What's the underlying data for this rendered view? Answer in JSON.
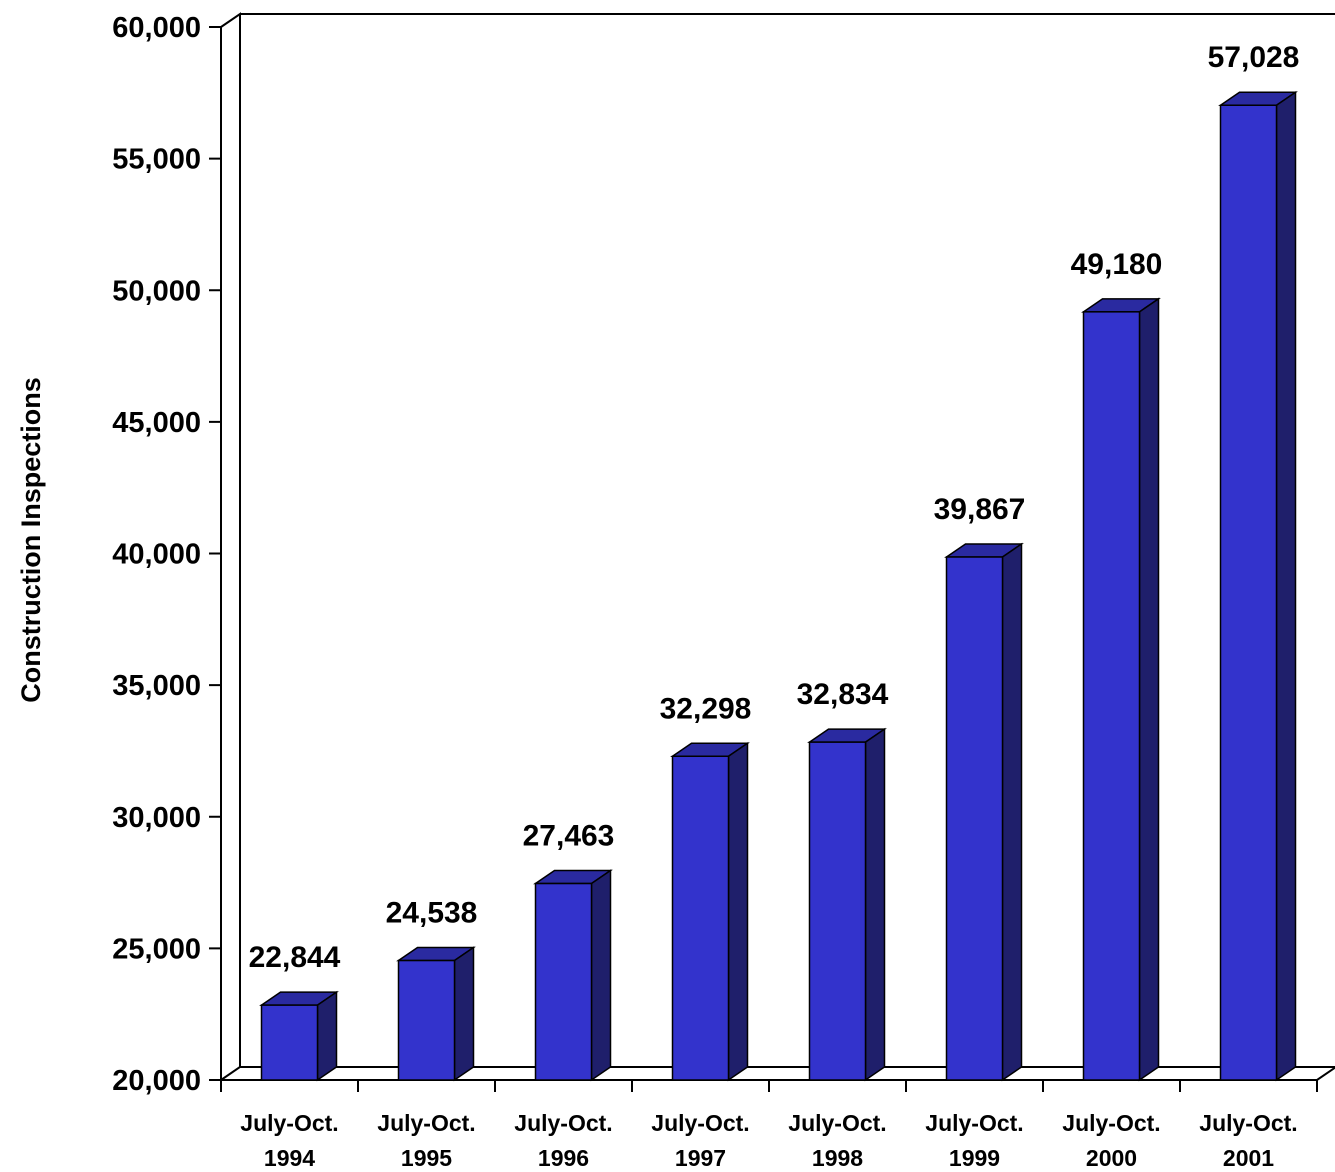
{
  "chart_data": {
    "type": "bar",
    "ylabel": "Construction Inspections",
    "ylim": [
      20000,
      60000
    ],
    "yticks": [
      {
        "value": 20000,
        "label": "20,000"
      },
      {
        "value": 25000,
        "label": "25,000"
      },
      {
        "value": 30000,
        "label": "30,000"
      },
      {
        "value": 35000,
        "label": "35,000"
      },
      {
        "value": 40000,
        "label": "40,000"
      },
      {
        "value": 45000,
        "label": "45,000"
      },
      {
        "value": 50000,
        "label": "50,000"
      },
      {
        "value": 55000,
        "label": "55,000"
      },
      {
        "value": 60000,
        "label": "60,000"
      }
    ],
    "categories": [
      {
        "line1": "July-Oct.",
        "line2": "1994"
      },
      {
        "line1": "July-Oct.",
        "line2": "1995"
      },
      {
        "line1": "July-Oct.",
        "line2": "1996"
      },
      {
        "line1": "July-Oct.",
        "line2": "1997"
      },
      {
        "line1": "July-Oct.",
        "line2": "1998"
      },
      {
        "line1": "July-Oct.",
        "line2": "1999"
      },
      {
        "line1": "July-Oct.",
        "line2": "2000"
      },
      {
        "line1": "July-Oct.",
        "line2": "2001"
      }
    ],
    "values": [
      22844,
      24538,
      27463,
      32298,
      32834,
      39867,
      49180,
      57028
    ],
    "value_labels": [
      "22,844",
      "24,538",
      "27,463",
      "32,298",
      "32,834",
      "39,867",
      "49,180",
      "57,028"
    ],
    "grid": false,
    "style": "3d-bar",
    "colors": {
      "bar_front": "#3333CC",
      "bar_side": "#1F1F6B",
      "bar_top": "#2A2AA0",
      "axis": "#000000"
    }
  }
}
